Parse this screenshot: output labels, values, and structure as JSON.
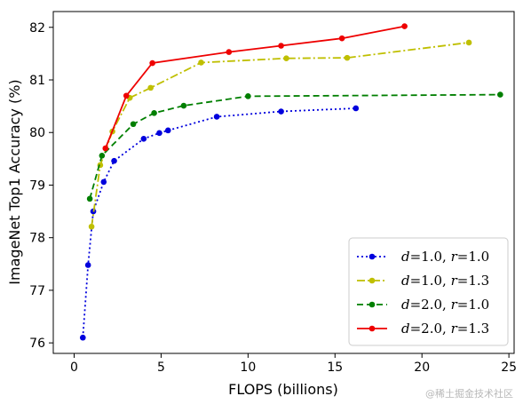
{
  "chart_data": {
    "type": "line",
    "xlabel": "FLOPS (billions)",
    "ylabel": "ImageNet Top1 Accuracy (%)",
    "xlim": [
      -1.2,
      25.3
    ],
    "ylim": [
      75.8,
      82.3
    ],
    "xticks": [
      0,
      5,
      10,
      15,
      20,
      25
    ],
    "yticks": [
      76,
      77,
      78,
      79,
      80,
      81,
      82
    ],
    "grid": false,
    "legend_position": "bottom-right",
    "series": [
      {
        "name_var1": "d",
        "name_val1": "=1.0, ",
        "name_var2": "r",
        "name_val2": "=1.0",
        "color": "#0000dd",
        "dash": "2,3",
        "x": [
          0.5,
          0.8,
          1.1,
          1.7,
          2.3,
          4.0,
          4.9,
          5.4,
          8.2,
          11.9,
          16.2
        ],
        "y": [
          76.1,
          77.48,
          78.5,
          79.06,
          79.46,
          79.88,
          79.99,
          80.04,
          80.3,
          80.4,
          80.46
        ]
      },
      {
        "name_var1": "d",
        "name_val1": "=1.0, ",
        "name_var2": "r",
        "name_val2": "=1.3",
        "color": "#bfbf00",
        "dash": "9,3,2,3",
        "x": [
          1.0,
          1.5,
          2.2,
          3.2,
          4.4,
          7.3,
          12.2,
          15.7,
          22.7
        ],
        "y": [
          78.21,
          79.38,
          80.02,
          80.66,
          80.85,
          81.33,
          81.41,
          81.42,
          81.71
        ],
        "note": ""
      },
      {
        "name_var1": "d",
        "name_val1": "=2.0, ",
        "name_var2": "r",
        "name_val2": "=1.0",
        "color": "#007f00",
        "dash": "7,4",
        "x": [
          0.9,
          1.6,
          3.4,
          4.6,
          6.3,
          10.0,
          24.5
        ],
        "y": [
          78.74,
          79.56,
          80.16,
          80.37,
          80.51,
          80.69,
          80.72
        ]
      },
      {
        "name_var1": "d",
        "name_val1": "=2.0, ",
        "name_var2": "r",
        "name_val2": "=1.3",
        "color": "#ee0000",
        "dash": "",
        "x": [
          1.8,
          3.0,
          4.5,
          8.9,
          11.9,
          15.4,
          19.0
        ],
        "y": [
          79.7,
          80.7,
          81.32,
          81.53,
          81.65,
          81.79,
          82.02
        ]
      }
    ]
  },
  "watermark": "@稀土掘金技术社区"
}
